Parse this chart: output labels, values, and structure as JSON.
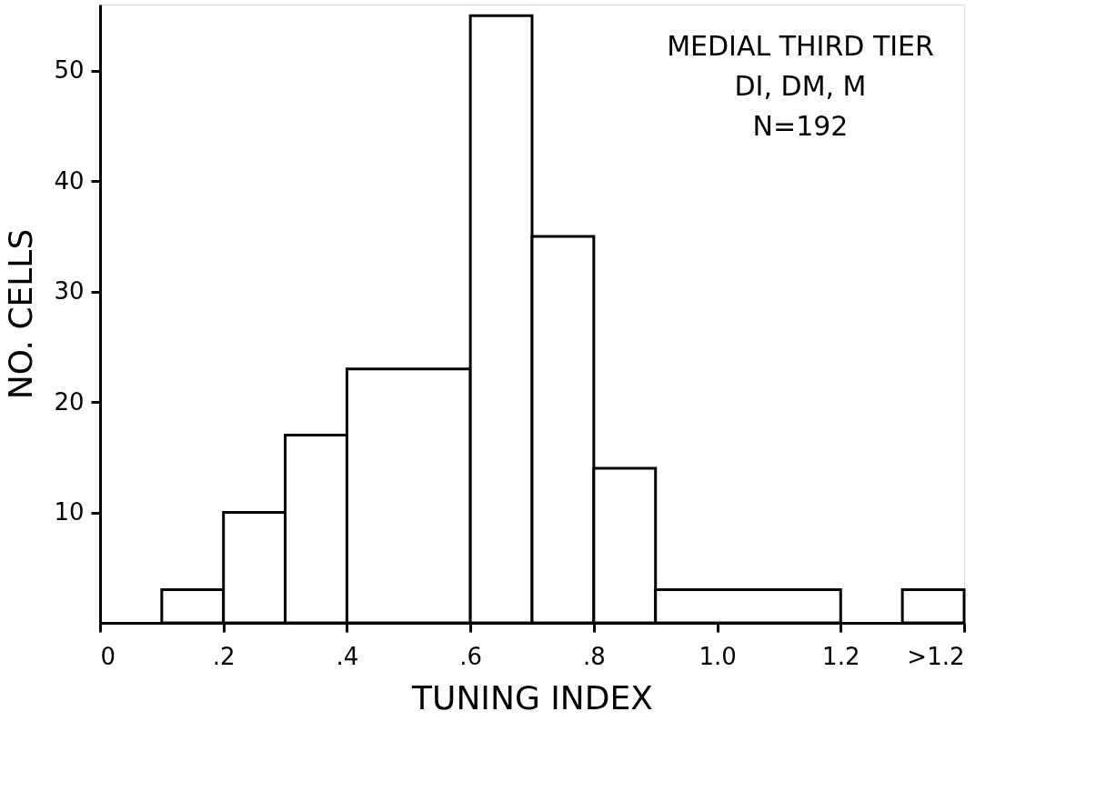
{
  "chart_data": {
    "type": "histogram",
    "xlabel": "TUNING INDEX",
    "ylabel": "NO. CELLS",
    "annotations": [
      "MEDIAL THIRD TIER",
      "DI, DM, M",
      "N=192"
    ],
    "bins": [
      0.1,
      0.2,
      0.3,
      0.4,
      0.6,
      0.7,
      0.8,
      0.9,
      1.2,
      1.3,
      1.4
    ],
    "values": [
      3,
      10,
      17,
      23,
      55,
      35,
      14,
      3,
      null,
      3
    ],
    "color": "#ffffff",
    "xlim": [
      0,
      1.4
    ],
    "ylim": [
      0,
      56
    ],
    "xticks": [
      0,
      {
        "value": 0.2,
        "label": ".2"
      },
      {
        "value": 0.4,
        "label": ".4"
      },
      {
        "value": 0.6,
        "label": ".6"
      },
      {
        "value": 0.8,
        "label": ".8"
      },
      {
        "value": 1.0,
        "label": "1.0"
      },
      1.2,
      {
        "value": 1.4,
        "label": ">1.2"
      }
    ],
    "yticks": [
      10,
      20,
      30,
      40,
      50
    ],
    "grid": false
  }
}
